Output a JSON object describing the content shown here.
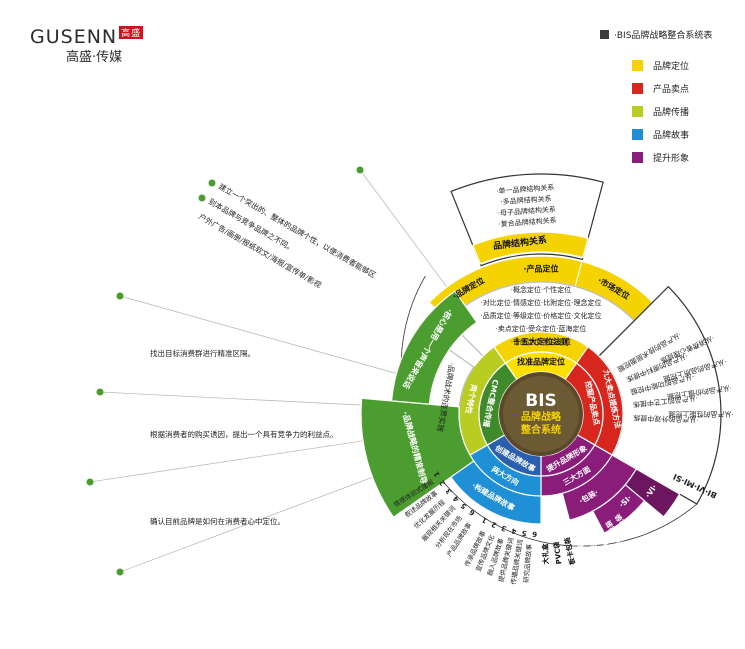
{
  "brand": {
    "name_en": "GUSENN",
    "name_cn": "高盛·传媒",
    "mark": "高盛",
    "mark_sub": "COM"
  },
  "legend": {
    "title": "·BIS品牌战略整合系统表",
    "items": [
      {
        "label": "品牌定位",
        "color": "#f5d300"
      },
      {
        "label": "产品卖点",
        "color": "#d7261e"
      },
      {
        "label": "品牌传播",
        "color": "#b9cc22"
      },
      {
        "label": "品牌故事",
        "color": "#1f8fd6"
      },
      {
        "label": "提升形象",
        "color": "#8a1d7a"
      }
    ]
  },
  "center": {
    "line1": "BIS",
    "line2": "品牌战略",
    "line3": "整合系统"
  },
  "inner": {
    "top": "找准品牌定位",
    "left": "CMC整合传播",
    "right": "挖掘产品卖点",
    "bottom_left": "创建品牌故事",
    "bottom_right": "提升品牌形象"
  },
  "middle": {
    "top": "十五大定位法则",
    "left": "两个特性",
    "right": "九大卖点提炼方法",
    "bottom_left": "两大方向",
    "bottom_right": "三大方面"
  },
  "positioning": {
    "labels": [
      "·品牌定位",
      "·产品定位",
      "·市场定位"
    ],
    "structure": "品牌结构关系",
    "structure_items": [
      "·复合品牌结构关系",
      "·母子品牌结构关系",
      "·多品牌结构关系",
      "·单一品牌结构关系"
    ],
    "rules": [
      "·概念定位·个性定位",
      "·对比定位·情感定位·比附定位·理念定位",
      "·品质定位·等级定位·价格定位·文化定位",
      "·卖点定位·受众定位·蓝海定位",
      "·首席定位·利益定位"
    ]
  },
  "selling": {
    "items": [
      "·从产品的技术层面挖掘",
      "·从产品的原料中提炼",
      "·从产品的功能中挖掘",
      "·从产品的工艺中提炼",
      "·从产品的外观中提炼"
    ],
    "items2": [
      "·从消费者心理提炼",
      "·从产品的品质上挖掘",
      "·从产品的价值上挖掘",
      "·从产品的性能上挖掘"
    ]
  },
  "communication": {
    "outer1": "·核心是用一个声音来说话",
    "outer2": "·品牌战略的精准制导",
    "inner1": "·品牌战术的连贯实施",
    "notes": [
      "建立一个突出的、整体的品牌个性，以便消费者能够区",
      "别本品牌与竞争品牌之不同。",
      "户外广告/画册/报纸软文/海报/宣传单/影视",
      "找出目标消费群进行精准区隔。",
      "根据消费者的购买诱因，提出一个具有竞争力的利益点。",
      "确认目前品牌是如何在消费者心中定位。"
    ]
  },
  "story": {
    "band": "·构建品牌故事",
    "nums_a": [
      "1",
      "2",
      "3",
      "4",
      "5",
      "6"
    ],
    "nums_b": [
      "1",
      "2",
      "3",
      "4",
      "5",
      "6"
    ],
    "items_a": [
      "情感体验式播报",
      "叙述品牌故事",
      "优化发展历程",
      "展现相关关键词",
      "分析现在市场",
      "产品品牌故事"
    ],
    "items_b": [
      "传承品牌故事",
      "宣传品牌文化",
      "融入品牌故事",
      "提供品牌关键词",
      "传播品牌关键词",
      "研究品牌故事"
    ]
  },
  "image": {
    "band1": "·VI·",
    "band2": "·SI·",
    "band3": "·包装·",
    "vi": "BI·VI·MI·SI",
    "items": [
      "大礼盒",
      "PVC袋",
      "板卡包装",
      "手提包装",
      "标签包装",
      "计价标签",
      "计时包装",
      "单品包装"
    ]
  }
}
